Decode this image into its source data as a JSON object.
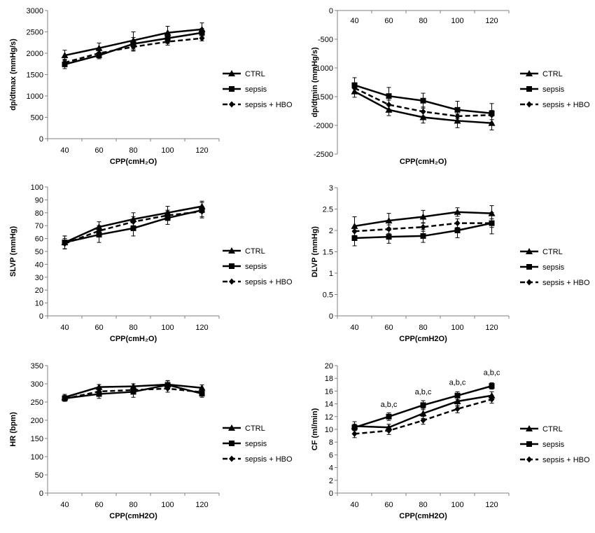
{
  "chart_data": [
    {
      "type": "line",
      "xlabel": "CPP(cmH₂O)",
      "ylabel": "dp/dtmax (mmHg/s)",
      "categories": [
        "40",
        "60",
        "80",
        "100",
        "120"
      ],
      "ylim": [
        0,
        3000
      ],
      "yticks": [
        0,
        500,
        1000,
        1500,
        2000,
        2500,
        3000
      ],
      "x_axis_at_top": false,
      "grid": false,
      "legend": "right",
      "series": [
        {
          "name": "CTRL",
          "style": "solid",
          "marker": "triangle",
          "values": [
            1950,
            2120,
            2300,
            2480,
            2560
          ],
          "errors": [
            120,
            120,
            200,
            150,
            150
          ]
        },
        {
          "name": "sepsis",
          "style": "solid",
          "marker": "square",
          "values": [
            1740,
            1950,
            2220,
            2350,
            2480
          ],
          "errors": [
            100,
            80,
            150,
            120,
            100
          ]
        },
        {
          "name": "sepsis + HBO",
          "style": "dashed",
          "marker": "diamond",
          "values": [
            1780,
            2000,
            2150,
            2270,
            2350
          ],
          "errors": [
            80,
            60,
            100,
            80,
            60
          ]
        }
      ],
      "annotations": []
    },
    {
      "type": "line",
      "xlabel": "CPP(cmH₂O)",
      "ylabel": "dp/dtmin (mmHg/s)",
      "categories": [
        "40",
        "60",
        "80",
        "100",
        "120"
      ],
      "ylim": [
        -2500,
        0
      ],
      "yticks": [
        -2500,
        -2000,
        -1500,
        -1000,
        -500,
        0
      ],
      "x_axis_at_top": true,
      "grid": false,
      "legend": "right",
      "series": [
        {
          "name": "CTRL",
          "style": "solid",
          "marker": "triangle",
          "values": [
            -1410,
            -1730,
            -1860,
            -1920,
            -1960
          ],
          "errors": [
            100,
            100,
            100,
            120,
            120
          ]
        },
        {
          "name": "sepsis",
          "style": "solid",
          "marker": "square",
          "values": [
            -1300,
            -1490,
            -1570,
            -1730,
            -1790
          ],
          "errors": [
            130,
            150,
            130,
            150,
            170
          ]
        },
        {
          "name": "sepsis + HBO",
          "style": "dashed",
          "marker": "diamond",
          "values": [
            -1350,
            -1640,
            -1760,
            -1840,
            -1820
          ],
          "errors": [
            80,
            80,
            80,
            80,
            80
          ]
        }
      ],
      "annotations": []
    },
    {
      "type": "line",
      "xlabel": "CPP(cmH₂O)",
      "ylabel": "SLVP (mmHg)",
      "categories": [
        "40",
        "60",
        "80",
        "100",
        "120"
      ],
      "ylim": [
        0,
        100
      ],
      "yticks": [
        0,
        10,
        20,
        30,
        40,
        50,
        60,
        70,
        80,
        90,
        100
      ],
      "x_axis_at_top": false,
      "grid": false,
      "legend": "right",
      "series": [
        {
          "name": "CTRL",
          "style": "solid",
          "marker": "triangle",
          "values": [
            57,
            69,
            75,
            80,
            85
          ],
          "errors": [
            5,
            4,
            5,
            5,
            4
          ]
        },
        {
          "name": "sepsis",
          "style": "solid",
          "marker": "square",
          "values": [
            57,
            63,
            68,
            76,
            82
          ],
          "errors": [
            5,
            6,
            6,
            5,
            6
          ]
        },
        {
          "name": "sepsis + HBO",
          "style": "dashed",
          "marker": "diamond",
          "values": [
            56,
            66,
            73,
            78,
            81
          ],
          "errors": [
            4,
            4,
            4,
            4,
            4
          ]
        }
      ],
      "annotations": []
    },
    {
      "type": "line",
      "xlabel": "CPP(cmH2O)",
      "ylabel": "DLVP (mmHg)",
      "categories": [
        "40",
        "60",
        "80",
        "100",
        "120"
      ],
      "ylim": [
        0,
        3
      ],
      "yticks": [
        0,
        0.5,
        1,
        1.5,
        2,
        2.5,
        3
      ],
      "x_axis_at_top": false,
      "grid": false,
      "legend": "right",
      "series": [
        {
          "name": "CTRL",
          "style": "solid",
          "marker": "triangle",
          "values": [
            2.1,
            2.23,
            2.32,
            2.43,
            2.4
          ],
          "errors": [
            0.22,
            0.17,
            0.15,
            0.1,
            0.18
          ]
        },
        {
          "name": "sepsis",
          "style": "solid",
          "marker": "square",
          "values": [
            1.82,
            1.85,
            1.87,
            2.0,
            2.17
          ],
          "errors": [
            0.18,
            0.15,
            0.15,
            0.17,
            0.25
          ]
        },
        {
          "name": "sepsis + HBO",
          "style": "dashed",
          "marker": "diamond",
          "values": [
            1.98,
            2.03,
            2.08,
            2.17,
            2.17
          ],
          "errors": [
            0.1,
            0.1,
            0.1,
            0.1,
            0.1
          ]
        }
      ],
      "annotations": []
    },
    {
      "type": "line",
      "xlabel": "CPP(cmH2O)",
      "ylabel": "HR (bpm)",
      "categories": [
        "40",
        "60",
        "80",
        "100",
        "120"
      ],
      "ylim": [
        0,
        350
      ],
      "yticks": [
        0,
        50,
        100,
        150,
        200,
        250,
        300,
        350
      ],
      "x_axis_at_top": false,
      "grid": false,
      "legend": "right",
      "series": [
        {
          "name": "CTRL",
          "style": "solid",
          "marker": "triangle",
          "values": [
            263,
            291,
            293,
            298,
            289
          ],
          "errors": [
            8,
            7,
            7,
            10,
            8
          ]
        },
        {
          "name": "sepsis",
          "style": "solid",
          "marker": "square",
          "values": [
            260,
            272,
            278,
            297,
            273
          ],
          "errors": [
            8,
            12,
            15,
            12,
            10
          ]
        },
        {
          "name": "sepsis + HBO",
          "style": "dashed",
          "marker": "diamond",
          "values": [
            259,
            279,
            283,
            287,
            277
          ],
          "errors": [
            7,
            8,
            8,
            10,
            8
          ]
        }
      ],
      "annotations": []
    },
    {
      "type": "line",
      "xlabel": "CPP(cmH2O)",
      "ylabel": "CF (ml/min)",
      "categories": [
        "40",
        "60",
        "80",
        "100",
        "120"
      ],
      "ylim": [
        0,
        20
      ],
      "yticks": [
        0,
        2,
        4,
        6,
        8,
        10,
        12,
        14,
        16,
        18,
        20
      ],
      "x_axis_at_top": false,
      "grid": false,
      "legend": "right",
      "series": [
        {
          "name": "CTRL",
          "style": "solid",
          "marker": "triangle",
          "values": [
            10.5,
            10.3,
            12.5,
            14.4,
            15.3
          ],
          "errors": [
            0.7,
            0.5,
            0.8,
            0.8,
            0.6
          ]
        },
        {
          "name": "sepsis",
          "style": "solid",
          "marker": "square",
          "values": [
            10.3,
            12.0,
            13.8,
            15.3,
            16.8
          ],
          "errors": [
            0.5,
            0.6,
            0.7,
            0.6,
            0.5
          ]
        },
        {
          "name": "sepsis + HBO",
          "style": "dashed",
          "marker": "diamond",
          "values": [
            9.3,
            9.8,
            11.4,
            13.2,
            14.7
          ],
          "errors": [
            0.6,
            0.6,
            0.6,
            0.6,
            0.6
          ]
        }
      ],
      "annotations": [
        {
          "category_index": 1,
          "y": 13.5,
          "text": "a,b,c"
        },
        {
          "category_index": 2,
          "y": 15.5,
          "text": "a,b,c"
        },
        {
          "category_index": 3,
          "y": 17.0,
          "text": "a,b,c"
        },
        {
          "category_index": 4,
          "y": 18.5,
          "text": "a,b,c"
        }
      ]
    }
  ],
  "colors": {
    "line": "#000000",
    "background": "#ffffff"
  }
}
